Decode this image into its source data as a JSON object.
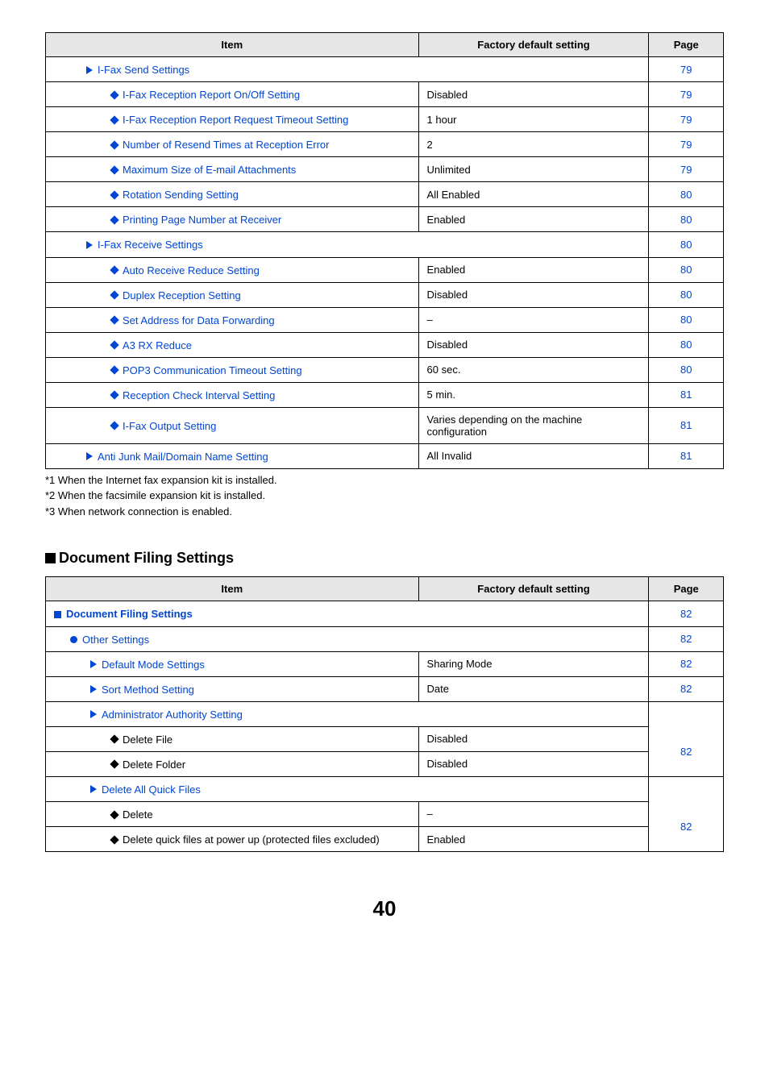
{
  "table1": {
    "headers": {
      "item": "Item",
      "value": "Factory default setting",
      "page": "Page"
    },
    "rows": [
      {
        "type": "section",
        "indent": "ind1",
        "icon": "arrow",
        "label": "I-Fax Send Settings",
        "page": "79"
      },
      {
        "type": "item",
        "indent": "ind2",
        "icon": "diamond-blue",
        "label": "I-Fax Reception Report On/Off Setting",
        "value": "Disabled",
        "page": "79"
      },
      {
        "type": "item",
        "indent": "ind2",
        "icon": "diamond-blue",
        "label": "I-Fax Reception Report Request Timeout Setting",
        "value": "1 hour",
        "page": "79"
      },
      {
        "type": "item",
        "indent": "ind2",
        "icon": "diamond-blue",
        "label": "Number of Resend Times at Reception Error",
        "value": "2",
        "page": "79"
      },
      {
        "type": "item",
        "indent": "ind2",
        "icon": "diamond-blue",
        "label": "Maximum Size of E-mail Attachments",
        "value": "Unlimited",
        "page": "79"
      },
      {
        "type": "item",
        "indent": "ind2",
        "icon": "diamond-blue",
        "label": "Rotation Sending Setting",
        "value": "All Enabled",
        "page": "80"
      },
      {
        "type": "item",
        "indent": "ind2",
        "icon": "diamond-blue",
        "label": "Printing Page Number at Receiver",
        "value": "Enabled",
        "page": "80"
      },
      {
        "type": "section",
        "indent": "ind1",
        "icon": "arrow",
        "label": "I-Fax Receive Settings",
        "page": "80"
      },
      {
        "type": "item",
        "indent": "ind2",
        "icon": "diamond-blue",
        "label": "Auto Receive Reduce Setting",
        "value": "Enabled",
        "page": "80"
      },
      {
        "type": "item",
        "indent": "ind2",
        "icon": "diamond-blue",
        "label": "Duplex Reception Setting",
        "value": "Disabled",
        "page": "80"
      },
      {
        "type": "item",
        "indent": "ind2",
        "icon": "diamond-blue",
        "label": "Set Address for Data Forwarding",
        "value": "–",
        "page": "80"
      },
      {
        "type": "item",
        "indent": "ind2",
        "icon": "diamond-blue",
        "label": "A3 RX Reduce",
        "value": "Disabled",
        "page": "80"
      },
      {
        "type": "item",
        "indent": "ind2",
        "icon": "diamond-blue",
        "label": "POP3 Communication Timeout Setting",
        "value": "60 sec.",
        "page": "80"
      },
      {
        "type": "item",
        "indent": "ind2",
        "icon": "diamond-blue",
        "label": "Reception Check Interval Setting",
        "value": "5 min.",
        "page": "81"
      },
      {
        "type": "item",
        "indent": "ind2",
        "icon": "diamond-blue",
        "label": "I-Fax Output Setting",
        "value": "Varies depending on the machine configuration",
        "page": "81"
      },
      {
        "type": "item",
        "indent": "ind1",
        "icon": "arrow",
        "label": "Anti Junk Mail/Domain Name Setting",
        "value": "All Invalid",
        "page": "81"
      }
    ]
  },
  "footnotes": [
    "*1   When the Internet fax expansion kit is installed.",
    "*2   When the facsimile expansion kit is installed.",
    "*3   When network connection is enabled."
  ],
  "section2_title": "Document Filing Settings",
  "table2": {
    "headers": {
      "item": "Item",
      "value": "Factory default setting",
      "page": "Page"
    },
    "rows": [
      {
        "type": "section",
        "indent": "ind0s",
        "icon": "sq-blue",
        "link": true,
        "label": "Document Filing Settings",
        "page": "82"
      },
      {
        "type": "section",
        "indent": "ind1s",
        "icon": "circ-blue",
        "link": true,
        "label": "Other Settings",
        "page": "82"
      },
      {
        "type": "item",
        "indent": "ind2s",
        "icon": "arrow",
        "link": true,
        "label": "Default Mode Settings",
        "value": "Sharing Mode",
        "page": "82"
      },
      {
        "type": "item",
        "indent": "ind2s",
        "icon": "arrow",
        "link": true,
        "label": "Sort Method Setting",
        "value": "Date",
        "page": "82"
      },
      {
        "type": "group-head",
        "indent": "ind2s",
        "icon": "arrow",
        "link": true,
        "label": "Administrator Authority Setting"
      },
      {
        "type": "sub-item",
        "indent": "ind3s",
        "icon": "diamond-black",
        "link": false,
        "label": "Delete File",
        "value": "Disabled",
        "page": "82",
        "rowspan": 2
      },
      {
        "type": "sub-item-noPage",
        "indent": "ind3s",
        "icon": "diamond-black",
        "link": false,
        "label": "Delete Folder",
        "value": "Disabled"
      },
      {
        "type": "group-head",
        "indent": "ind2s",
        "icon": "arrow",
        "link": true,
        "label": "Delete All Quick Files"
      },
      {
        "type": "sub-item",
        "indent": "ind3s",
        "icon": "diamond-black",
        "link": false,
        "label": "Delete",
        "value": "–",
        "page": "82",
        "rowspan": 2
      },
      {
        "type": "sub-item-noPage",
        "indent": "ind3s",
        "icon": "diamond-black",
        "link": false,
        "label": "Delete quick files at power up (protected files excluded)",
        "value": "Enabled"
      }
    ]
  },
  "page_number": "40"
}
